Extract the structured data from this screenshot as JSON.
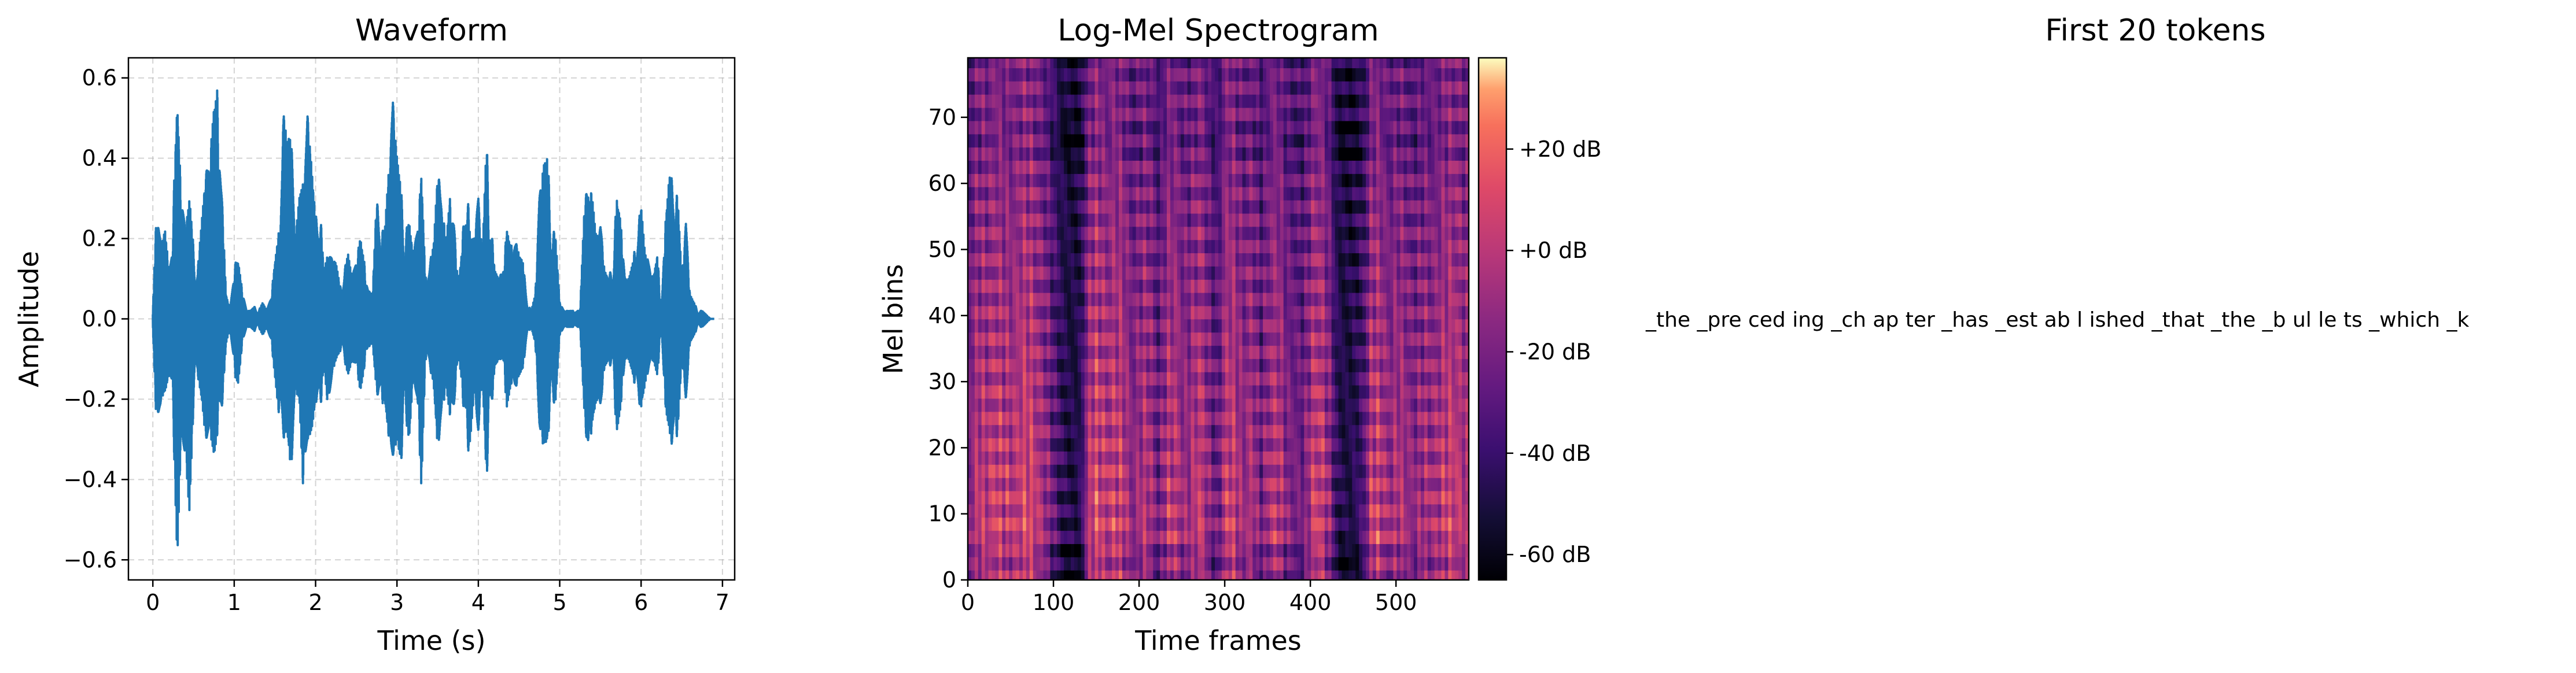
{
  "chart_data": [
    {
      "type": "line",
      "title": "Waveform",
      "xlabel": "Time (s)",
      "ylabel": "Amplitude",
      "xlim": [
        -0.3,
        7.15
      ],
      "ylim": [
        -0.65,
        0.65
      ],
      "xticks": [
        0,
        1,
        2,
        3,
        4,
        5,
        6,
        7
      ],
      "xtick_labels": [
        "0",
        "1",
        "2",
        "3",
        "4",
        "5",
        "6",
        "7"
      ],
      "yticks": [
        -0.6,
        -0.4,
        -0.2,
        0.0,
        0.2,
        0.4,
        0.6
      ],
      "ytick_labels": [
        "−0.6",
        "−0.4",
        "−0.2",
        "0.0",
        "0.2",
        "0.4",
        "0.6"
      ],
      "grid": true,
      "color": "#1f77b4",
      "series": [
        {
          "x": [
            0.0,
            0.05,
            0.1,
            0.15,
            0.2,
            0.25,
            0.3,
            0.35,
            0.4,
            0.45,
            0.5,
            0.55,
            0.6,
            0.65,
            0.7,
            0.75,
            0.8,
            0.85,
            0.9,
            0.95,
            1.0,
            1.05,
            1.1,
            1.15,
            1.2,
            1.25,
            1.3,
            1.35,
            1.4,
            1.45,
            1.5,
            1.55,
            1.6,
            1.65,
            1.7,
            1.75,
            1.8,
            1.85,
            1.9,
            1.95,
            2.0,
            2.05,
            2.1,
            2.15,
            2.2,
            2.25,
            2.3,
            2.35,
            2.4,
            2.45,
            2.5,
            2.55,
            2.6,
            2.65,
            2.7,
            2.75,
            2.8,
            2.85,
            2.9,
            2.95,
            3.0,
            3.05,
            3.1,
            3.15,
            3.2,
            3.25,
            3.3,
            3.35,
            3.4,
            3.45,
            3.5,
            3.55,
            3.6,
            3.65,
            3.7,
            3.75,
            3.8,
            3.85,
            3.9,
            3.95,
            4.0,
            4.05,
            4.1,
            4.15,
            4.2,
            4.25,
            4.3,
            4.35,
            4.4,
            4.45,
            4.5,
            4.55,
            4.6,
            4.65,
            4.7,
            4.75,
            4.8,
            4.85,
            4.9,
            4.95,
            5.0,
            5.05,
            5.1,
            5.15,
            5.2,
            5.25,
            5.3,
            5.35,
            5.4,
            5.45,
            5.5,
            5.55,
            5.6,
            5.65,
            5.7,
            5.75,
            5.8,
            5.85,
            5.9,
            5.95,
            6.0,
            6.05,
            6.1,
            6.15,
            6.2,
            6.25,
            6.3,
            6.35,
            6.4,
            6.45,
            6.5,
            6.55,
            6.6,
            6.65,
            6.7,
            6.75,
            6.8,
            6.85
          ],
          "max": [
            0.02,
            0.3,
            0.18,
            0.22,
            0.12,
            0.28,
            0.54,
            0.3,
            0.22,
            0.3,
            0.18,
            0.12,
            0.24,
            0.36,
            0.4,
            0.52,
            0.58,
            0.3,
            0.06,
            0.02,
            0.14,
            0.14,
            0.07,
            0.02,
            0.02,
            0.03,
            0.02,
            0.04,
            0.02,
            0.05,
            0.14,
            0.22,
            0.52,
            0.44,
            0.46,
            0.2,
            0.3,
            0.34,
            0.51,
            0.38,
            0.25,
            0.3,
            0.12,
            0.16,
            0.15,
            0.14,
            0.08,
            0.12,
            0.16,
            0.1,
            0.15,
            0.2,
            0.14,
            0.07,
            0.06,
            0.3,
            0.22,
            0.22,
            0.37,
            0.54,
            0.4,
            0.32,
            0.22,
            0.24,
            0.16,
            0.22,
            0.36,
            0.1,
            0.14,
            0.18,
            0.36,
            0.32,
            0.18,
            0.3,
            0.24,
            0.08,
            0.17,
            0.38,
            0.2,
            0.2,
            0.3,
            0.16,
            0.44,
            0.26,
            0.12,
            0.1,
            0.12,
            0.22,
            0.18,
            0.2,
            0.16,
            0.14,
            0.04,
            0.02,
            0.06,
            0.3,
            0.38,
            0.4,
            0.24,
            0.2,
            0.04,
            0.02,
            0.02,
            0.02,
            0.02,
            0.02,
            0.26,
            0.36,
            0.3,
            0.2,
            0.24,
            0.12,
            0.1,
            0.14,
            0.3,
            0.24,
            0.1,
            0.1,
            0.14,
            0.22,
            0.28,
            0.16,
            0.14,
            0.1,
            0.16,
            0.02,
            0.24,
            0.36,
            0.34,
            0.3,
            0.1,
            0.24,
            0.06,
            0.04,
            0.02,
            0.02,
            0.01,
            0.0
          ],
          "min": [
            -0.02,
            -0.3,
            -0.2,
            -0.18,
            -0.14,
            -0.26,
            -0.6,
            -0.28,
            -0.34,
            -0.48,
            -0.22,
            -0.14,
            -0.2,
            -0.3,
            -0.28,
            -0.34,
            -0.28,
            -0.22,
            -0.06,
            -0.02,
            -0.14,
            -0.16,
            -0.06,
            -0.02,
            -0.02,
            -0.03,
            -0.02,
            -0.04,
            -0.02,
            -0.05,
            -0.14,
            -0.24,
            -0.3,
            -0.28,
            -0.38,
            -0.18,
            -0.2,
            -0.44,
            -0.3,
            -0.28,
            -0.2,
            -0.27,
            -0.1,
            -0.22,
            -0.14,
            -0.1,
            -0.08,
            -0.1,
            -0.14,
            -0.1,
            -0.12,
            -0.18,
            -0.12,
            -0.07,
            -0.06,
            -0.18,
            -0.22,
            -0.2,
            -0.3,
            -0.34,
            -0.3,
            -0.36,
            -0.24,
            -0.3,
            -0.14,
            -0.2,
            -0.42,
            -0.1,
            -0.12,
            -0.16,
            -0.32,
            -0.26,
            -0.16,
            -0.24,
            -0.22,
            -0.08,
            -0.16,
            -0.36,
            -0.3,
            -0.18,
            -0.28,
            -0.14,
            -0.4,
            -0.26,
            -0.12,
            -0.1,
            -0.1,
            -0.22,
            -0.16,
            -0.18,
            -0.14,
            -0.12,
            -0.04,
            -0.02,
            -0.06,
            -0.26,
            -0.32,
            -0.3,
            -0.22,
            -0.2,
            -0.04,
            -0.02,
            -0.02,
            -0.02,
            -0.02,
            -0.02,
            -0.22,
            -0.36,
            -0.26,
            -0.2,
            -0.22,
            -0.12,
            -0.1,
            -0.14,
            -0.28,
            -0.22,
            -0.1,
            -0.1,
            -0.14,
            -0.2,
            -0.22,
            -0.16,
            -0.12,
            -0.1,
            -0.14,
            -0.02,
            -0.22,
            -0.28,
            -0.34,
            -0.28,
            -0.1,
            -0.2,
            -0.06,
            -0.04,
            -0.02,
            -0.02,
            -0.01,
            0.0
          ]
        }
      ]
    },
    {
      "type": "heatmap",
      "title": "Log-Mel Spectrogram",
      "xlabel": "Time frames",
      "ylabel": "Mel bins",
      "xlim": [
        0,
        585
      ],
      "ylim": [
        0,
        79
      ],
      "xticks": [
        0,
        100,
        200,
        300,
        400,
        500
      ],
      "xtick_labels": [
        "0",
        "100",
        "200",
        "300",
        "400",
        "500"
      ],
      "yticks": [
        0,
        10,
        20,
        30,
        40,
        50,
        60,
        70
      ],
      "ytick_labels": [
        "0",
        "10",
        "20",
        "30",
        "40",
        "50",
        "60",
        "70"
      ],
      "colormap": "magma",
      "colorbar": {
        "range": [
          -65,
          38
        ],
        "ticks": [
          -60,
          -40,
          -20,
          0,
          20
        ],
        "tick_labels": [
          "-60 dB",
          "-40 dB",
          "-20 dB",
          "+0 dB",
          "+20 dB"
        ]
      },
      "frame_energy": {
        "frames": [
          0,
          10,
          20,
          30,
          40,
          50,
          60,
          70,
          80,
          90,
          100,
          110,
          120,
          130,
          140,
          150,
          160,
          170,
          180,
          190,
          200,
          210,
          220,
          230,
          240,
          250,
          260,
          270,
          280,
          290,
          300,
          310,
          320,
          330,
          340,
          350,
          360,
          370,
          380,
          390,
          400,
          410,
          420,
          430,
          440,
          450,
          460,
          470,
          480,
          490,
          500,
          510,
          520,
          530,
          540,
          550,
          560,
          570,
          580
        ],
        "level": [
          0.55,
          0.8,
          0.75,
          0.85,
          0.8,
          0.75,
          0.85,
          0.9,
          0.75,
          0.6,
          0.35,
          0.15,
          0.1,
          0.15,
          0.8,
          0.9,
          0.75,
          0.85,
          0.8,
          0.55,
          0.7,
          0.75,
          0.4,
          0.75,
          0.8,
          0.6,
          0.7,
          0.85,
          0.55,
          0.4,
          0.85,
          0.8,
          0.6,
          0.75,
          0.45,
          0.7,
          0.8,
          0.55,
          0.5,
          0.45,
          0.8,
          0.85,
          0.6,
          0.15,
          0.1,
          0.15,
          0.3,
          0.85,
          0.8,
          0.6,
          0.75,
          0.65,
          0.55,
          0.7,
          0.65,
          0.75,
          0.85,
          0.8,
          0.7
        ]
      }
    },
    {
      "type": "table",
      "title": "First 20 tokens",
      "tokens_text": "_the _pre ced ing _ch ap ter _has _est ab l ished _that _the _b ul le ts _which _k"
    }
  ]
}
